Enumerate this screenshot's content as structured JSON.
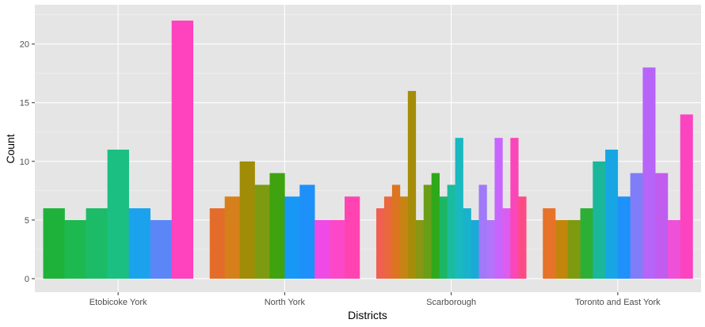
{
  "chart_data": {
    "type": "bar",
    "title": "",
    "xlabel": "Districts",
    "ylabel": "Count",
    "ylim": [
      -1.15,
      23.35
    ],
    "yticks": [
      0,
      5,
      10,
      15,
      20
    ],
    "grid": true,
    "legend": "none",
    "colors": {
      "panel": "#e5e5e5",
      "grid_major": "#ffffff",
      "grid_minor": "#f2f2f2",
      "tick": "#333333"
    },
    "categories": [
      "Etobicoke York",
      "North York",
      "Scarborough",
      "Toronto and East York"
    ],
    "groups": [
      {
        "category": "Etobicoke York",
        "bars": [
          {
            "value": 6,
            "color": "#1eb23a"
          },
          {
            "value": 5,
            "color": "#1db84f"
          },
          {
            "value": 6,
            "color": "#1cbb67"
          },
          {
            "value": 11,
            "color": "#1bbf82"
          },
          {
            "value": 6,
            "color": "#1aa3ec"
          },
          {
            "value": 5,
            "color": "#5a86f8"
          },
          {
            "value": 22,
            "color": "#ff42be"
          }
        ]
      },
      {
        "category": "North York",
        "bars": [
          {
            "value": 6,
            "color": "#e46c2a"
          },
          {
            "value": 7,
            "color": "#d5801a"
          },
          {
            "value": 10,
            "color": "#a08c06"
          },
          {
            "value": 8,
            "color": "#7d9a10"
          },
          {
            "value": 9,
            "color": "#3ea30e"
          },
          {
            "value": 7,
            "color": "#1797f6"
          },
          {
            "value": 8,
            "color": "#1e90fa"
          },
          {
            "value": 5,
            "color": "#f04ae6"
          },
          {
            "value": 5,
            "color": "#fc48c8"
          },
          {
            "value": 7,
            "color": "#ff44b2"
          }
        ]
      },
      {
        "category": "Scarborough",
        "bars": [
          {
            "value": 6,
            "color": "#f06050"
          },
          {
            "value": 7,
            "color": "#e9683e"
          },
          {
            "value": 8,
            "color": "#dc7420"
          },
          {
            "value": 7,
            "color": "#c78414"
          },
          {
            "value": 16,
            "color": "#a58d0a"
          },
          {
            "value": 5,
            "color": "#889614"
          },
          {
            "value": 8,
            "color": "#699e18"
          },
          {
            "value": 9,
            "color": "#2fa81a"
          },
          {
            "value": 7,
            "color": "#1cb664"
          },
          {
            "value": 8,
            "color": "#1bbb9e"
          },
          {
            "value": 12,
            "color": "#19b9bf"
          },
          {
            "value": 6,
            "color": "#18b3cb"
          },
          {
            "value": 5,
            "color": "#17abd6"
          },
          {
            "value": 8,
            "color": "#a07af8"
          },
          {
            "value": 5,
            "color": "#b275fa"
          },
          {
            "value": 12,
            "color": "#c766fc"
          },
          {
            "value": 6,
            "color": "#dc5cf0"
          },
          {
            "value": 12,
            "color": "#fa46b8"
          },
          {
            "value": 7,
            "color": "#fd4c84"
          }
        ]
      },
      {
        "category": "Toronto and East York",
        "bars": [
          {
            "value": 6,
            "color": "#e7722a"
          },
          {
            "value": 5,
            "color": "#c2860c"
          },
          {
            "value": 5,
            "color": "#7e9a10"
          },
          {
            "value": 6,
            "color": "#2daf36"
          },
          {
            "value": 10,
            "color": "#1ab79a"
          },
          {
            "value": 11,
            "color": "#17a6e3"
          },
          {
            "value": 7,
            "color": "#1e91fa"
          },
          {
            "value": 9,
            "color": "#7f7df8"
          },
          {
            "value": 18,
            "color": "#b764f9"
          },
          {
            "value": 9,
            "color": "#c05df0"
          },
          {
            "value": 5,
            "color": "#ee50d8"
          },
          {
            "value": 14,
            "color": "#fc43c0"
          }
        ]
      }
    ]
  }
}
